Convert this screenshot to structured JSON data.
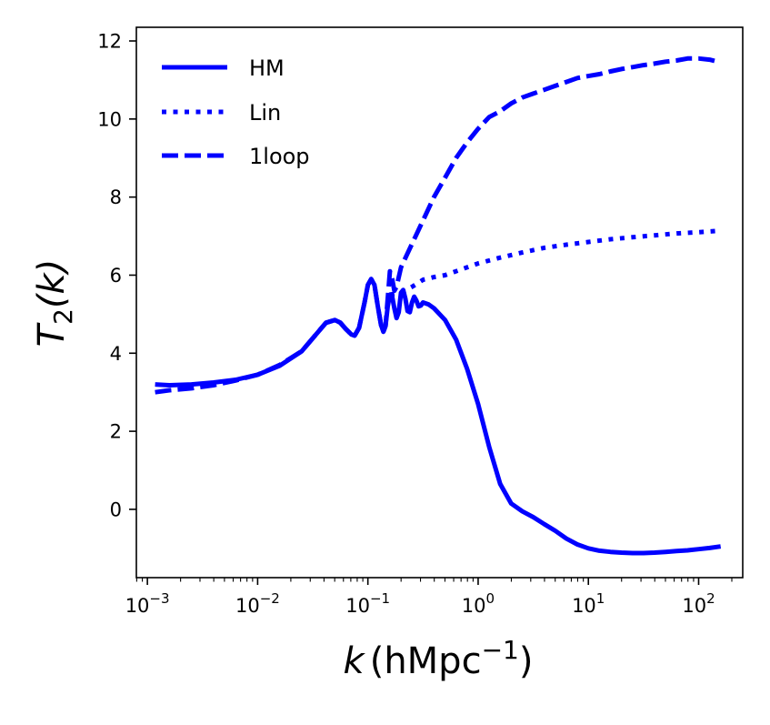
{
  "chart_data": {
    "type": "line",
    "xscale": "log",
    "xlim_exp": [
      -3.1,
      2.4
    ],
    "ylim": [
      -1.75,
      12.35
    ],
    "x_ticks": [
      {
        "exp": -3,
        "base": "10",
        "sup": "−3"
      },
      {
        "exp": -2,
        "base": "10",
        "sup": "−2"
      },
      {
        "exp": -1,
        "base": "10",
        "sup": "−1"
      },
      {
        "exp": 0,
        "base": "10",
        "sup": "0"
      },
      {
        "exp": 1,
        "base": "10",
        "sup": "1"
      },
      {
        "exp": 2,
        "base": "10",
        "sup": "2"
      }
    ],
    "y_ticks": [
      {
        "value": 0,
        "label": "0"
      },
      {
        "value": 2,
        "label": "2"
      },
      {
        "value": 4,
        "label": "4"
      },
      {
        "value": 6,
        "label": "6"
      },
      {
        "value": 8,
        "label": "8"
      },
      {
        "value": 10,
        "label": "10"
      },
      {
        "value": 12,
        "label": "12"
      }
    ],
    "xlabel": {
      "var": "k",
      "unit": "hMpc",
      "sup": "−1"
    },
    "ylabel": {
      "var": "T",
      "sub": "2",
      "arg": "(k)"
    },
    "legend_position": "upper-left",
    "line_color": "#0000ff",
    "series": [
      {
        "name": "HM",
        "label": "HM",
        "style": "solid",
        "points": [
          [
            -2.93,
            3.2
          ],
          [
            -2.8,
            3.18
          ],
          [
            -2.6,
            3.2
          ],
          [
            -2.4,
            3.25
          ],
          [
            -2.2,
            3.32
          ],
          [
            -2.0,
            3.45
          ],
          [
            -1.8,
            3.68
          ],
          [
            -1.6,
            4.05
          ],
          [
            -1.45,
            4.55
          ],
          [
            -1.38,
            4.78
          ],
          [
            -1.3,
            4.85
          ],
          [
            -1.25,
            4.78
          ],
          [
            -1.2,
            4.62
          ],
          [
            -1.15,
            4.48
          ],
          [
            -1.12,
            4.45
          ],
          [
            -1.08,
            4.65
          ],
          [
            -1.03,
            5.3
          ],
          [
            -1.0,
            5.75
          ],
          [
            -0.97,
            5.9
          ],
          [
            -0.94,
            5.75
          ],
          [
            -0.91,
            5.2
          ],
          [
            -0.88,
            4.72
          ],
          [
            -0.86,
            4.55
          ],
          [
            -0.84,
            4.7
          ],
          [
            -0.82,
            5.2
          ],
          [
            -0.8,
            5.5
          ],
          [
            -0.78,
            5.45
          ],
          [
            -0.76,
            5.15
          ],
          [
            -0.74,
            4.9
          ],
          [
            -0.72,
            5.05
          ],
          [
            -0.7,
            5.55
          ],
          [
            -0.68,
            5.62
          ],
          [
            -0.66,
            5.4
          ],
          [
            -0.64,
            5.08
          ],
          [
            -0.62,
            5.05
          ],
          [
            -0.6,
            5.3
          ],
          [
            -0.58,
            5.45
          ],
          [
            -0.56,
            5.35
          ],
          [
            -0.54,
            5.2
          ],
          [
            -0.52,
            5.22
          ],
          [
            -0.5,
            5.3
          ],
          [
            -0.45,
            5.25
          ],
          [
            -0.4,
            5.15
          ],
          [
            -0.3,
            4.85
          ],
          [
            -0.2,
            4.35
          ],
          [
            -0.1,
            3.6
          ],
          [
            0.0,
            2.7
          ],
          [
            0.1,
            1.6
          ],
          [
            0.2,
            0.65
          ],
          [
            0.3,
            0.15
          ],
          [
            0.4,
            -0.05
          ],
          [
            0.5,
            -0.2
          ],
          [
            0.6,
            -0.38
          ],
          [
            0.7,
            -0.55
          ],
          [
            0.8,
            -0.75
          ],
          [
            0.9,
            -0.9
          ],
          [
            1.0,
            -1.0
          ],
          [
            1.1,
            -1.06
          ],
          [
            1.2,
            -1.09
          ],
          [
            1.3,
            -1.11
          ],
          [
            1.4,
            -1.12
          ],
          [
            1.5,
            -1.12
          ],
          [
            1.6,
            -1.11
          ],
          [
            1.7,
            -1.09
          ],
          [
            1.8,
            -1.07
          ],
          [
            1.9,
            -1.05
          ],
          [
            2.0,
            -1.02
          ],
          [
            2.1,
            -0.99
          ],
          [
            2.2,
            -0.95
          ]
        ]
      },
      {
        "name": "Lin",
        "label": "Lin",
        "style": "dotted",
        "points": [
          [
            -0.8,
            5.5
          ],
          [
            -0.7,
            5.55
          ],
          [
            -0.6,
            5.7
          ],
          [
            -0.5,
            5.88
          ],
          [
            -0.4,
            5.95
          ],
          [
            -0.3,
            6.0
          ],
          [
            -0.2,
            6.1
          ],
          [
            -0.1,
            6.2
          ],
          [
            0.0,
            6.3
          ],
          [
            0.2,
            6.45
          ],
          [
            0.4,
            6.58
          ],
          [
            0.6,
            6.7
          ],
          [
            0.8,
            6.78
          ],
          [
            1.0,
            6.85
          ],
          [
            1.2,
            6.92
          ],
          [
            1.4,
            6.97
          ],
          [
            1.6,
            7.02
          ],
          [
            1.8,
            7.07
          ],
          [
            2.0,
            7.1
          ],
          [
            2.2,
            7.14
          ]
        ]
      },
      {
        "name": "1loop",
        "label": "1loop",
        "style": "dashed",
        "points": [
          [
            -2.93,
            3.0
          ],
          [
            -2.8,
            3.05
          ],
          [
            -2.6,
            3.1
          ],
          [
            -2.4,
            3.18
          ],
          [
            -2.2,
            3.3
          ],
          [
            -2.0,
            3.45
          ],
          [
            -1.8,
            3.7
          ],
          [
            -1.6,
            4.05
          ],
          [
            -1.45,
            4.55
          ],
          [
            -1.38,
            4.78
          ],
          [
            -1.3,
            4.85
          ],
          [
            -1.25,
            4.78
          ],
          [
            -1.2,
            4.62
          ],
          [
            -1.15,
            4.48
          ],
          [
            -1.12,
            4.45
          ],
          [
            -1.08,
            4.65
          ],
          [
            -1.03,
            5.3
          ],
          [
            -1.0,
            5.75
          ],
          [
            -0.97,
            5.9
          ],
          [
            -0.94,
            5.75
          ],
          [
            -0.91,
            5.2
          ],
          [
            -0.88,
            4.72
          ],
          [
            -0.86,
            4.55
          ],
          [
            -0.84,
            4.7
          ],
          [
            -0.82,
            5.4
          ],
          [
            -0.8,
            6.1
          ],
          [
            -0.78,
            5.9
          ],
          [
            -0.76,
            5.6
          ],
          [
            -0.74,
            5.7
          ],
          [
            -0.7,
            6.2
          ],
          [
            -0.6,
            6.8
          ],
          [
            -0.5,
            7.4
          ],
          [
            -0.4,
            8.0
          ],
          [
            -0.3,
            8.5
          ],
          [
            -0.2,
            9.0
          ],
          [
            -0.1,
            9.4
          ],
          [
            0.0,
            9.75
          ],
          [
            0.1,
            10.05
          ],
          [
            0.2,
            10.2
          ],
          [
            0.3,
            10.4
          ],
          [
            0.4,
            10.55
          ],
          [
            0.5,
            10.65
          ],
          [
            0.6,
            10.75
          ],
          [
            0.7,
            10.85
          ],
          [
            0.8,
            10.95
          ],
          [
            0.9,
            11.05
          ],
          [
            1.0,
            11.1
          ],
          [
            1.1,
            11.15
          ],
          [
            1.2,
            11.22
          ],
          [
            1.3,
            11.28
          ],
          [
            1.4,
            11.33
          ],
          [
            1.5,
            11.38
          ],
          [
            1.6,
            11.42
          ],
          [
            1.7,
            11.47
          ],
          [
            1.8,
            11.5
          ],
          [
            1.9,
            11.55
          ],
          [
            2.0,
            11.55
          ],
          [
            2.1,
            11.52
          ],
          [
            2.2,
            11.45
          ]
        ]
      }
    ]
  }
}
